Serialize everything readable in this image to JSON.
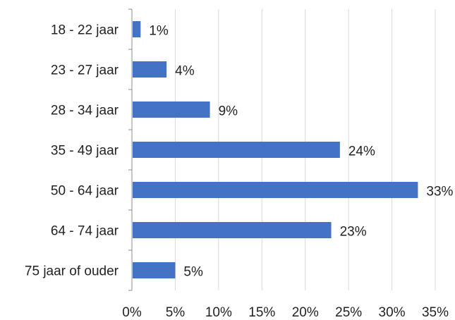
{
  "chart_data": {
    "type": "bar",
    "orientation": "horizontal",
    "categories": [
      "18 - 22 jaar",
      "23 - 27 jaar",
      "28 - 34 jaar",
      "35 - 49 jaar",
      "50 - 64 jaar",
      "64 - 74 jaar",
      "75 jaar of ouder"
    ],
    "values": [
      1,
      4,
      9,
      24,
      33,
      23,
      5
    ],
    "data_labels": [
      "1%",
      "4%",
      "9%",
      "24%",
      "33%",
      "23%",
      "5%"
    ],
    "x_ticks": [
      "0%",
      "5%",
      "10%",
      "15%",
      "20%",
      "25%",
      "30%",
      "35%"
    ],
    "xlim": [
      0,
      35
    ],
    "grid": true,
    "bar_color": "#4472c4",
    "grid_color": "#d9d9d9",
    "axis_color": "#8c8c8c"
  }
}
